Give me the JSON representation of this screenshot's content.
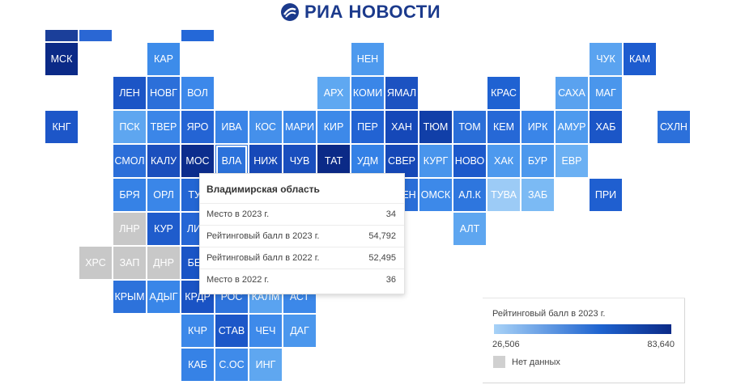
{
  "brand": {
    "name": "РИА НОВОСТИ"
  },
  "colors": {
    "no_data": "#cdcdcd",
    "scale": [
      "#a8d2f7",
      "#1e63cf",
      "#0b2a87"
    ]
  },
  "tooltip": {
    "title": "Владимирская область",
    "rows": [
      {
        "label": "Место в 2023 г.",
        "value": "34"
      },
      {
        "label": "Рейтинговый балл в 2023 г.",
        "value": "54,792"
      },
      {
        "label": "Рейтинговый балл в 2022 г.",
        "value": "52,495"
      },
      {
        "label": "Место в 2022 г.",
        "value": "36"
      }
    ]
  },
  "legend": {
    "title": "Рейтинговый балл в 2023 г.",
    "min": "26,506",
    "max": "83,640",
    "no_data_label": "Нет данных"
  },
  "selected_region": "ВЛА",
  "regions": [
    {
      "code": "",
      "color": "#1b3f9a",
      "row": -1,
      "col": 1
    },
    {
      "code": "",
      "color": "#2a67d4",
      "row": -1,
      "col": 2
    },
    {
      "code": "",
      "color": "#2468d8",
      "row": -1,
      "col": 5
    },
    {
      "code": "МСК",
      "color": "#0b2a87",
      "row": 0,
      "col": 1
    },
    {
      "code": "КАР",
      "color": "#3d8cea",
      "row": 0,
      "col": 4
    },
    {
      "code": "НЕН",
      "color": "#4e9aee",
      "row": 0,
      "col": 10
    },
    {
      "code": "ЧУК",
      "color": "#5aa3f0",
      "row": 0,
      "col": 17
    },
    {
      "code": "КАМ",
      "color": "#1d5ccf",
      "row": 0,
      "col": 18
    },
    {
      "code": "ЛЕН",
      "color": "#1c55c6",
      "row": 1,
      "col": 3
    },
    {
      "code": "НОВГ",
      "color": "#2c6fd9",
      "row": 1,
      "col": 4
    },
    {
      "code": "ВОЛ",
      "color": "#3c88ea",
      "row": 1,
      "col": 5
    },
    {
      "code": "АРХ",
      "color": "#5fa8f1",
      "row": 1,
      "col": 9
    },
    {
      "code": "КОМИ",
      "color": "#3a86e8",
      "row": 1,
      "col": 10
    },
    {
      "code": "ЯМАЛ",
      "color": "#1c52c1",
      "row": 1,
      "col": 11
    },
    {
      "code": "КРАС",
      "color": "#1f62d2",
      "row": 1,
      "col": 14
    },
    {
      "code": "САХА",
      "color": "#5aa2ef",
      "row": 1,
      "col": 16
    },
    {
      "code": "МАГ",
      "color": "#4a96ec",
      "row": 1,
      "col": 17
    },
    {
      "code": "КНГ",
      "color": "#1d56c8",
      "row": 2,
      "col": 1
    },
    {
      "code": "ПСК",
      "color": "#5ea6f0",
      "row": 2,
      "col": 3
    },
    {
      "code": "ТВЕР",
      "color": "#3b86e8",
      "row": 2,
      "col": 4
    },
    {
      "code": "ЯРО",
      "color": "#2464d4",
      "row": 2,
      "col": 5
    },
    {
      "code": "ИВА",
      "color": "#3a84e7",
      "row": 2,
      "col": 6
    },
    {
      "code": "КОС",
      "color": "#4590eb",
      "row": 2,
      "col": 7
    },
    {
      "code": "МАРИ",
      "color": "#3c88e9",
      "row": 2,
      "col": 8
    },
    {
      "code": "КИР",
      "color": "#3d89e9",
      "row": 2,
      "col": 9
    },
    {
      "code": "ПЕР",
      "color": "#2263d3",
      "row": 2,
      "col": 10
    },
    {
      "code": "ХАН",
      "color": "#1548b8",
      "row": 2,
      "col": 11
    },
    {
      "code": "ТЮМ",
      "color": "#113fa8",
      "row": 2,
      "col": 12
    },
    {
      "code": "ТОМ",
      "color": "#2a6ed8",
      "row": 2,
      "col": 13
    },
    {
      "code": "КЕМ",
      "color": "#2668d6",
      "row": 2,
      "col": 14
    },
    {
      "code": "ИРК",
      "color": "#3a85e8",
      "row": 2,
      "col": 15
    },
    {
      "code": "АМУР",
      "color": "#4e9aee",
      "row": 2,
      "col": 16
    },
    {
      "code": "ХАБ",
      "color": "#1b56c7",
      "row": 2,
      "col": 17
    },
    {
      "code": "СХЛН",
      "color": "#2c70da",
      "row": 2,
      "col": 19
    },
    {
      "code": "СМОЛ",
      "color": "#2c6fd9",
      "row": 3,
      "col": 3
    },
    {
      "code": "КАЛУ",
      "color": "#1b4fbd",
      "row": 3,
      "col": 4
    },
    {
      "code": "МОС",
      "color": "#0c2d8d",
      "row": 3,
      "col": 5
    },
    {
      "code": "ВЛА",
      "color": "#2c72db",
      "row": 3,
      "col": 6
    },
    {
      "code": "НИЖ",
      "color": "#1749b8",
      "row": 3,
      "col": 7
    },
    {
      "code": "ЧУВ",
      "color": "#1a4fbe",
      "row": 3,
      "col": 8
    },
    {
      "code": "ТАТ",
      "color": "#0b2a87",
      "row": 3,
      "col": 9
    },
    {
      "code": "УДМ",
      "color": "#3481e6",
      "row": 3,
      "col": 10
    },
    {
      "code": "СВЕР",
      "color": "#1548b7",
      "row": 3,
      "col": 11
    },
    {
      "code": "КУРГ",
      "color": "#4995ec",
      "row": 3,
      "col": 12
    },
    {
      "code": "НОВО",
      "color": "#1c59cb",
      "row": 3,
      "col": 13
    },
    {
      "code": "ХАК",
      "color": "#4d99ee",
      "row": 3,
      "col": 14
    },
    {
      "code": "БУР",
      "color": "#4c98ed",
      "row": 3,
      "col": 15
    },
    {
      "code": "ЕВР",
      "color": "#6bb0f3",
      "row": 3,
      "col": 16
    },
    {
      "code": "БРЯ",
      "color": "#3682e6",
      "row": 4,
      "col": 3
    },
    {
      "code": "ОРЛ",
      "color": "#3a86e8",
      "row": 4,
      "col": 4
    },
    {
      "code": "ТУЛ",
      "color": "#2366d4",
      "row": 4,
      "col": 5
    },
    {
      "code": "ОРЕН",
      "color": "#2a6ed8",
      "row": 4,
      "col": 11
    },
    {
      "code": "ОМСК",
      "color": "#3d89e9",
      "row": 4,
      "col": 12
    },
    {
      "code": "АЛ.К",
      "color": "#2e76de",
      "row": 4,
      "col": 13
    },
    {
      "code": "ТУВА",
      "color": "#9ccbf6",
      "row": 4,
      "col": 14
    },
    {
      "code": "ЗАБ",
      "color": "#7bbaf4",
      "row": 4,
      "col": 15
    },
    {
      "code": "ПРИ",
      "color": "#1f5fd0",
      "row": 4,
      "col": 17
    },
    {
      "code": "ЛНР",
      "color": "#c8c8c8",
      "row": 5,
      "col": 3
    },
    {
      "code": "КУР",
      "color": "#1f5ccc",
      "row": 5,
      "col": 4
    },
    {
      "code": "ЛИП",
      "color": "#2566d5",
      "row": 5,
      "col": 5
    },
    {
      "code": "АЛТ",
      "color": "#5ea6f0",
      "row": 5,
      "col": 13
    },
    {
      "code": "ХРС",
      "color": "#c8c8c8",
      "row": 6,
      "col": 2
    },
    {
      "code": "ЗАП",
      "color": "#c8c8c8",
      "row": 6,
      "col": 3
    },
    {
      "code": "ДНР",
      "color": "#c8c8c8",
      "row": 6,
      "col": 4
    },
    {
      "code": "БЕЛ",
      "color": "#1a55c6",
      "row": 6,
      "col": 5
    },
    {
      "code": "КРЫМ",
      "color": "#2d72db",
      "row": 7,
      "col": 3
    },
    {
      "code": "АДЫГ",
      "color": "#3986e8",
      "row": 7,
      "col": 4
    },
    {
      "code": "КРДР",
      "color": "#1a53c4",
      "row": 7,
      "col": 5
    },
    {
      "code": "РОС",
      "color": "#2e74dd",
      "row": 7,
      "col": 6
    },
    {
      "code": "КАЛМ",
      "color": "#5aa3f0",
      "row": 7,
      "col": 7
    },
    {
      "code": "АСТ",
      "color": "#3c88e9",
      "row": 7,
      "col": 8
    },
    {
      "code": "КЧР",
      "color": "#3c88e9",
      "row": 8,
      "col": 5
    },
    {
      "code": "СТАВ",
      "color": "#1c57c8",
      "row": 8,
      "col": 6
    },
    {
      "code": "ЧЕЧ",
      "color": "#3e8aea",
      "row": 8,
      "col": 7
    },
    {
      "code": "ДАГ",
      "color": "#4b97ed",
      "row": 8,
      "col": 8
    },
    {
      "code": "КАБ",
      "color": "#3682e6",
      "row": 9,
      "col": 5
    },
    {
      "code": "С.ОС",
      "color": "#3f8bea",
      "row": 9,
      "col": 6
    },
    {
      "code": "ИНГ",
      "color": "#5fa7f0",
      "row": 9,
      "col": 7
    }
  ]
}
